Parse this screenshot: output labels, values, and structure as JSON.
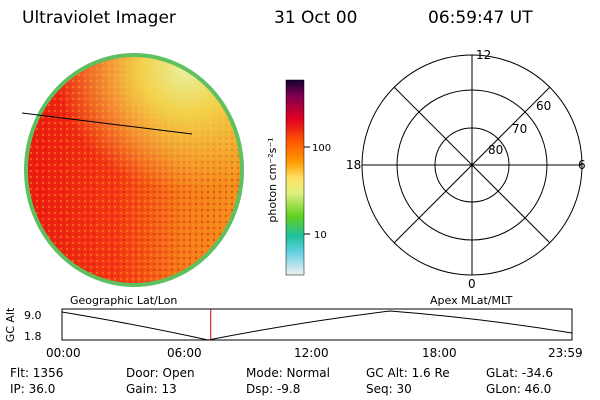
{
  "header": {
    "instrument": "Ultraviolet Imager",
    "date": "31 Oct 00",
    "time": "06:59:47 UT"
  },
  "colorbar": {
    "unit_label": "photon cm⁻²s⁻¹",
    "ticks": [
      "100",
      "10"
    ]
  },
  "polar_plot": {
    "mlt_labels": {
      "top": "12",
      "left": "18",
      "right": "6",
      "bottom": "0"
    },
    "lat_labels": [
      "60",
      "70",
      "80"
    ]
  },
  "timeline": {
    "left_title": "Geographic Lat/Lon",
    "right_title": "Apex MLat/MLT",
    "axis_label": "GC Alt",
    "y_ticks": [
      "9.0",
      "1.8"
    ],
    "x_ticks": [
      "00:00",
      "06:00",
      "12:00",
      "18:00",
      "23:59"
    ],
    "current_hours": 7.0
  },
  "status": {
    "flt": "Flt: 1356",
    "ip": "IP: 36.0",
    "door": "Door: Open",
    "gain": "Gain: 13",
    "mode": "Mode: Normal",
    "dsp": "Dsp:    -9.8",
    "gc_alt": "GC Alt: 1.6 Re",
    "seq": "Seq: 30",
    "glat": "GLat: -34.6",
    "glon": "GLon:  46.0"
  }
}
